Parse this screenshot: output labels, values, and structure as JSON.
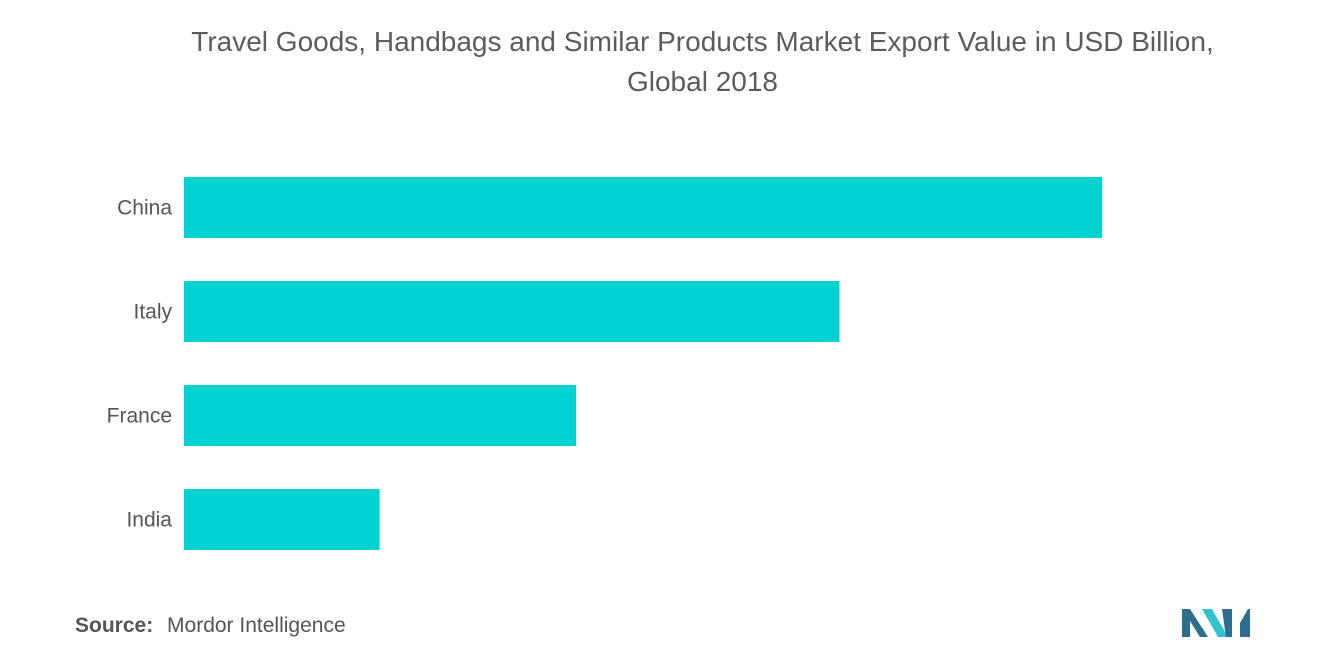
{
  "chart_data": {
    "type": "bar",
    "orientation": "horizontal",
    "title_line1": "Travel Goods, Handbags and Similar Products Market Export Value in USD Billion,",
    "title_line2": "Global 2018",
    "categories": [
      "China",
      "Italy",
      "France",
      "India"
    ],
    "values": [
      100,
      71.4,
      42.7,
      21.3
    ],
    "xlim": [
      0,
      100
    ],
    "grid": false,
    "bar_color": "#00D1D1"
  },
  "source": {
    "label": "Source:",
    "text": "Mordor Intelligence"
  },
  "logo": {
    "icon": "mordor-intelligence-logo-icon",
    "color_dark": "#2d6e8e",
    "color_light": "#33c3d0"
  }
}
